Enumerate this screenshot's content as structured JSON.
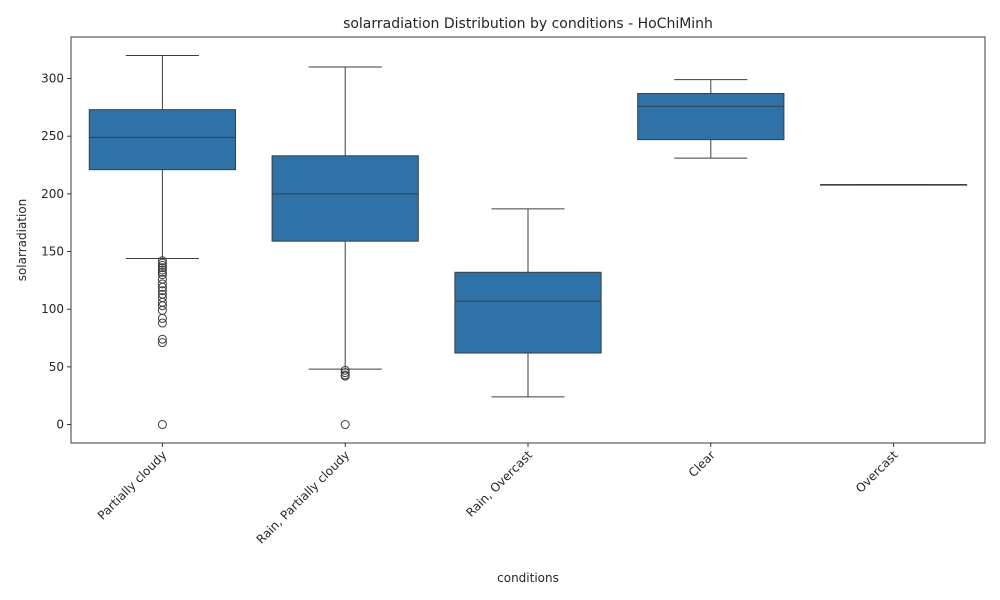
{
  "chart_data": {
    "type": "box",
    "title": "solarradiation Distribution by conditions - HoChiMinh",
    "xlabel": "conditions",
    "ylabel": "solarradiation",
    "ylim": [
      -16,
      336
    ],
    "yticks": [
      0,
      50,
      100,
      150,
      200,
      250,
      300
    ],
    "grid": false,
    "legend": "none",
    "box_color": "#2f72a8",
    "line_color": "#3d3d3d",
    "categories": [
      "Partially cloudy",
      "Rain, Partially cloudy",
      "Rain, Overcast",
      "Clear",
      "Overcast"
    ],
    "boxes": [
      {
        "category": "Partially cloudy",
        "whisker_low": 144,
        "q1": 221,
        "median": 249,
        "q3": 273,
        "whisker_high": 320,
        "outliers": [
          142,
          140,
          138,
          136,
          134,
          132,
          130,
          126,
          122,
          119,
          116,
          113,
          110,
          106,
          103,
          99,
          92,
          88,
          74,
          71,
          0
        ]
      },
      {
        "category": "Rain, Partially cloudy",
        "whisker_low": 48,
        "q1": 159,
        "median": 200,
        "q3": 233,
        "whisker_high": 310,
        "outliers": [
          47,
          45,
          43,
          42,
          0
        ]
      },
      {
        "category": "Rain, Overcast",
        "whisker_low": 24,
        "q1": 62,
        "median": 107,
        "q3": 132,
        "whisker_high": 187,
        "outliers": []
      },
      {
        "category": "Clear",
        "whisker_low": 231,
        "q1": 247,
        "median": 276,
        "q3": 287,
        "whisker_high": 299,
        "outliers": []
      },
      {
        "category": "Overcast",
        "whisker_low": 208,
        "q1": 208,
        "median": 208,
        "q3": 208,
        "whisker_high": 208,
        "outliers": []
      }
    ]
  }
}
